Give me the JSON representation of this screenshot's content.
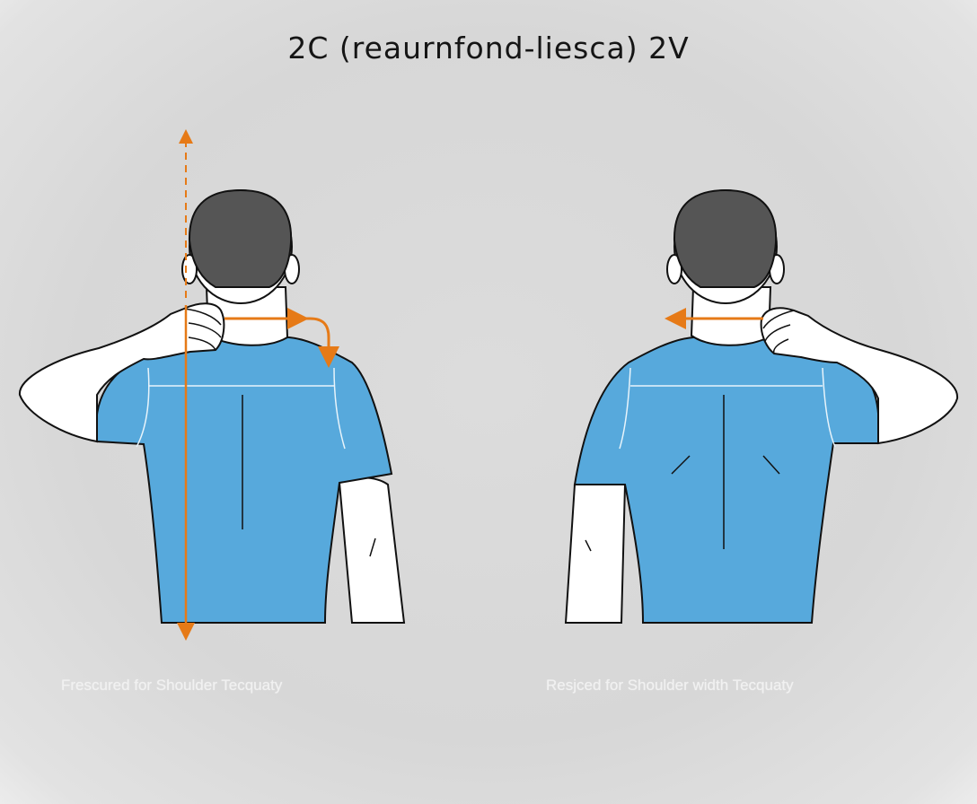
{
  "title": "2C (reaurnfond-liesca) 2V",
  "left_panel": {
    "caption": "Frescured for Shoulder Tecquaty"
  },
  "right_panel": {
    "caption": "Resjced for Shoulder width Tecquaty"
  },
  "colors": {
    "shirt": "#57a9dc",
    "hair": "#555555",
    "arrow": "#e67a17",
    "background": "#dcdcdc"
  }
}
